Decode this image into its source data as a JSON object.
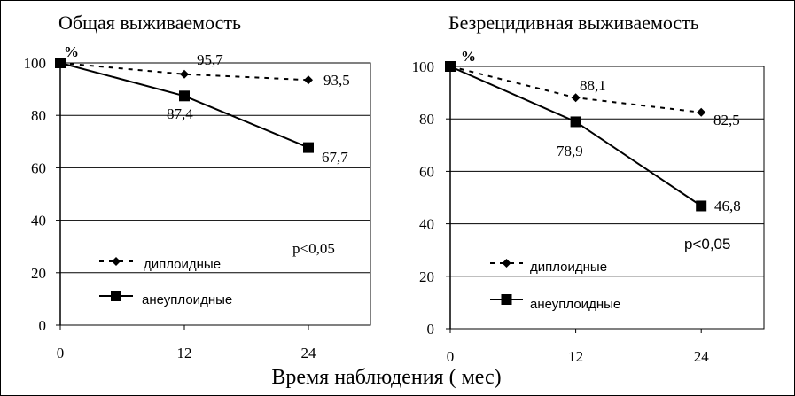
{
  "figure": {
    "xlabel": "Время наблюдения ( мес)"
  },
  "chart_data": [
    {
      "type": "line",
      "title": "Общая выживаемость",
      "ylabel": "%",
      "x": [
        0,
        12,
        24
      ],
      "xticks": [
        "0",
        "12",
        "24"
      ],
      "yticks": [
        "0",
        "20",
        "40",
        "60",
        "80",
        "100"
      ],
      "ylim": [
        0,
        100
      ],
      "xlim": [
        0,
        30
      ],
      "grid": "horizontal",
      "annotation": "p<0,05",
      "legend_placement": "bottom-left",
      "series": [
        {
          "name": "диплоидные",
          "values": [
            100,
            95.7,
            93.5
          ],
          "labels": [
            "",
            "95,7",
            "93,5"
          ],
          "style": "dashed",
          "marker": "diamond",
          "color": "#000000"
        },
        {
          "name": "анеуплоидные",
          "values": [
            100,
            87.4,
            67.7
          ],
          "labels": [
            "",
            "87,4",
            "67,7"
          ],
          "style": "solid",
          "marker": "square",
          "color": "#000000"
        }
      ]
    },
    {
      "type": "line",
      "title": "Безрецидивная  выживаемость",
      "ylabel": "%",
      "x": [
        0,
        12,
        24
      ],
      "xticks": [
        "0",
        "12",
        "24"
      ],
      "yticks": [
        "0",
        "20",
        "40",
        "60",
        "80",
        "100"
      ],
      "ylim": [
        0,
        100
      ],
      "xlim": [
        0,
        30
      ],
      "grid": "horizontal",
      "annotation": "p<0,05",
      "legend_placement": "bottom-left",
      "series": [
        {
          "name": "диплоидные",
          "values": [
            100,
            88.1,
            82.5
          ],
          "labels": [
            "",
            "88,1",
            "82,5"
          ],
          "style": "dashed",
          "marker": "diamond",
          "color": "#000000"
        },
        {
          "name": "анеуплоидные",
          "values": [
            100,
            78.9,
            46.8
          ],
          "labels": [
            "",
            "78,9",
            "46,8"
          ],
          "style": "solid",
          "marker": "square",
          "color": "#000000"
        }
      ]
    }
  ]
}
